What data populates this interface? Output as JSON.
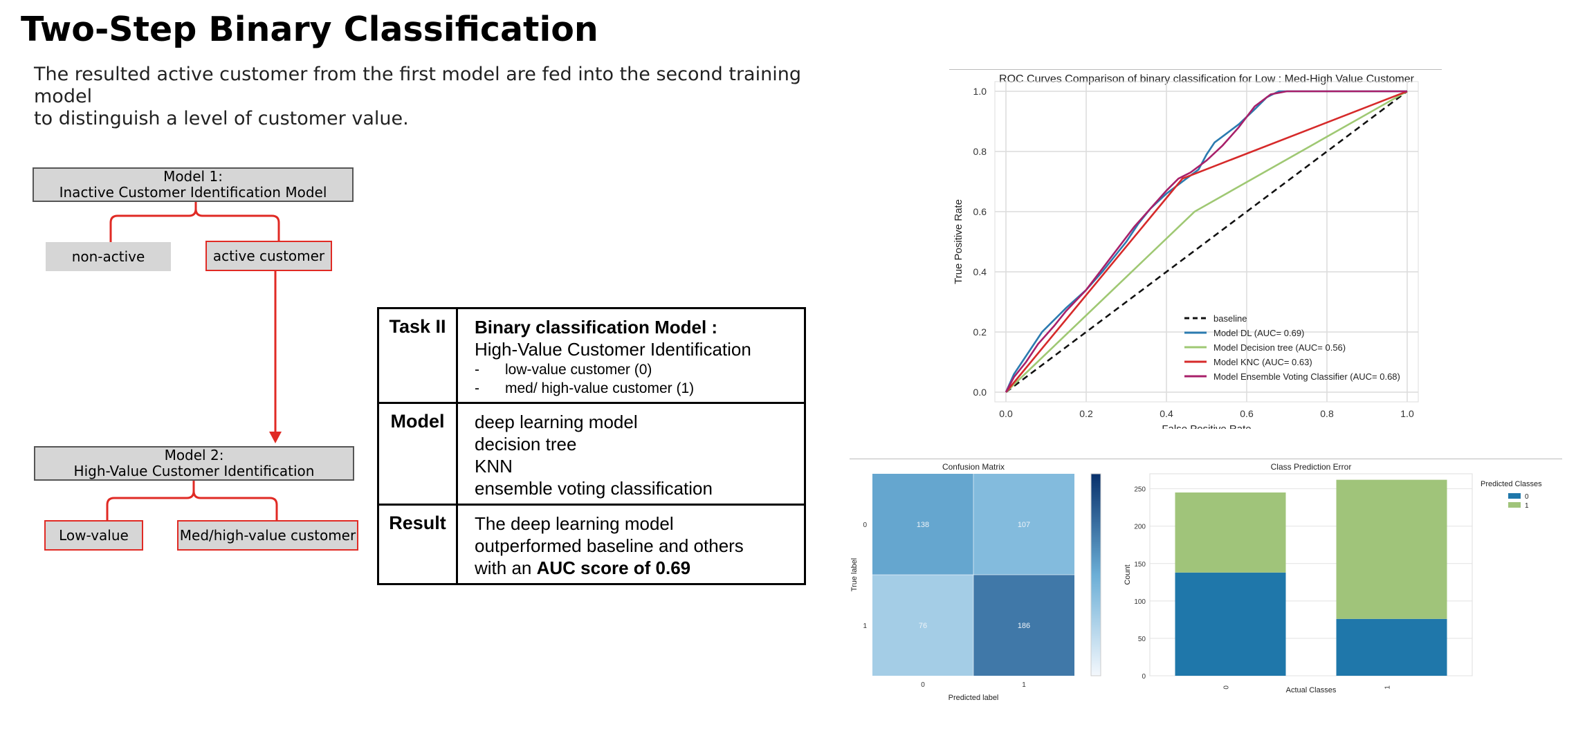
{
  "slide": {
    "title": "Two-Step Binary Classification",
    "subtitle_line1": "The resulted active customer from the first model are fed into the second training model",
    "subtitle_line2": "to distinguish a level of customer value."
  },
  "flow": {
    "model1_line1": "Model 1:",
    "model1_line2": "Inactive Customer Identification Model",
    "nonactive": "non-active",
    "active": "active customer",
    "model2_line1": "Model 2:",
    "model2_line2": "High-Value Customer Identification",
    "low": "Low-value",
    "high": "Med/high-value customer",
    "accent_color": "#e02a24"
  },
  "task_table": {
    "row1_label": "Task II",
    "row1_title": "Binary classification Model :",
    "row1_subtitle": "High-Value Customer Identification",
    "row1_items": [
      "low-value customer (0)",
      "med/ high-value customer (1)"
    ],
    "row2_label": "Model",
    "row2_items": [
      "deep learning model",
      "decision tree",
      "KNN",
      "ensemble voting classification"
    ],
    "row3_label": "Result",
    "row3_line1": "The deep learning model",
    "row3_line2": "outperformed baseline and others",
    "row3_line3_prefix": "with an ",
    "row3_line3_bold": "AUC score of 0.69"
  },
  "chart_data": [
    {
      "type": "line",
      "title": "ROC Curves Comparison of binary classification for Low : Med-High Value Customer",
      "xlabel": "False Positive Rate",
      "ylabel": "True Positive Rate",
      "xlim": [
        0,
        1
      ],
      "ylim": [
        0,
        1
      ],
      "xticks": [
        "0.0",
        "0.2",
        "0.4",
        "0.6",
        "0.8",
        "1.0"
      ],
      "yticks": [
        "0.0",
        "0.2",
        "0.4",
        "0.6",
        "0.8",
        "1.0"
      ],
      "grid": true,
      "legend_position": "lower-right",
      "series": [
        {
          "name": "baseline",
          "color": "#111111",
          "dashed": true,
          "x": [
            0,
            1
          ],
          "y": [
            0,
            1
          ]
        },
        {
          "name": "Model DL (AUC= 0.69)",
          "color": "#2b7bb0",
          "x": [
            0,
            0.02,
            0.04,
            0.06,
            0.09,
            0.12,
            0.15,
            0.2,
            0.24,
            0.27,
            0.3,
            0.33,
            0.36,
            0.4,
            0.44,
            0.48,
            0.5,
            0.52,
            0.55,
            0.58,
            0.62,
            0.65,
            0.68,
            0.72,
            1.0
          ],
          "y": [
            0,
            0.06,
            0.1,
            0.14,
            0.2,
            0.24,
            0.28,
            0.34,
            0.4,
            0.45,
            0.5,
            0.56,
            0.61,
            0.66,
            0.7,
            0.74,
            0.79,
            0.83,
            0.86,
            0.89,
            0.94,
            0.98,
            1.0,
            1.0,
            1.0
          ]
        },
        {
          "name": "Model Decision tree (AUC= 0.56)",
          "color": "#9fc873",
          "x": [
            0,
            0.47,
            1.0
          ],
          "y": [
            0,
            0.6,
            1.0
          ]
        },
        {
          "name": "Model KNC (AUC= 0.63)",
          "color": "#d62a2a",
          "x": [
            0,
            0.44,
            1.0
          ],
          "y": [
            0,
            0.71,
            1.0
          ]
        },
        {
          "name": "Model Ensemble Voting Classifier (AUC= 0.68)",
          "color": "#a8206a",
          "x": [
            0,
            0.02,
            0.05,
            0.08,
            0.12,
            0.15,
            0.2,
            0.24,
            0.28,
            0.32,
            0.36,
            0.4,
            0.43,
            0.46,
            0.5,
            0.54,
            0.58,
            0.62,
            0.66,
            0.7,
            1.0
          ],
          "y": [
            0,
            0.05,
            0.1,
            0.16,
            0.22,
            0.27,
            0.34,
            0.41,
            0.48,
            0.55,
            0.61,
            0.67,
            0.71,
            0.73,
            0.77,
            0.82,
            0.88,
            0.95,
            0.99,
            1.0,
            1.0
          ]
        }
      ]
    },
    {
      "type": "heatmap",
      "title": "Confusion Matrix",
      "xlabel": "Predicted label",
      "ylabel": "True label",
      "x_categories": [
        "0",
        "1"
      ],
      "y_categories": [
        "0",
        "1"
      ],
      "values": [
        [
          138,
          107
        ],
        [
          76,
          186
        ]
      ],
      "colorbar_ticks": [
        "0",
        "50",
        "100",
        "150",
        "200",
        "250"
      ],
      "colorbar_range": [
        0,
        260
      ]
    },
    {
      "type": "bar",
      "title": "Class Prediction Error",
      "xlabel": "Actual Classes",
      "ylabel": "Count",
      "categories": [
        "0",
        "1"
      ],
      "ylim": [
        0,
        270
      ],
      "yticks": [
        "0",
        "50",
        "100",
        "150",
        "200",
        "250"
      ],
      "legend_title": "Predicted Classes",
      "series": [
        {
          "name": "0",
          "color": "#1f77aa",
          "values": [
            138,
            76
          ]
        },
        {
          "name": "1",
          "color": "#a0c47a",
          "values": [
            107,
            186
          ]
        }
      ]
    }
  ]
}
